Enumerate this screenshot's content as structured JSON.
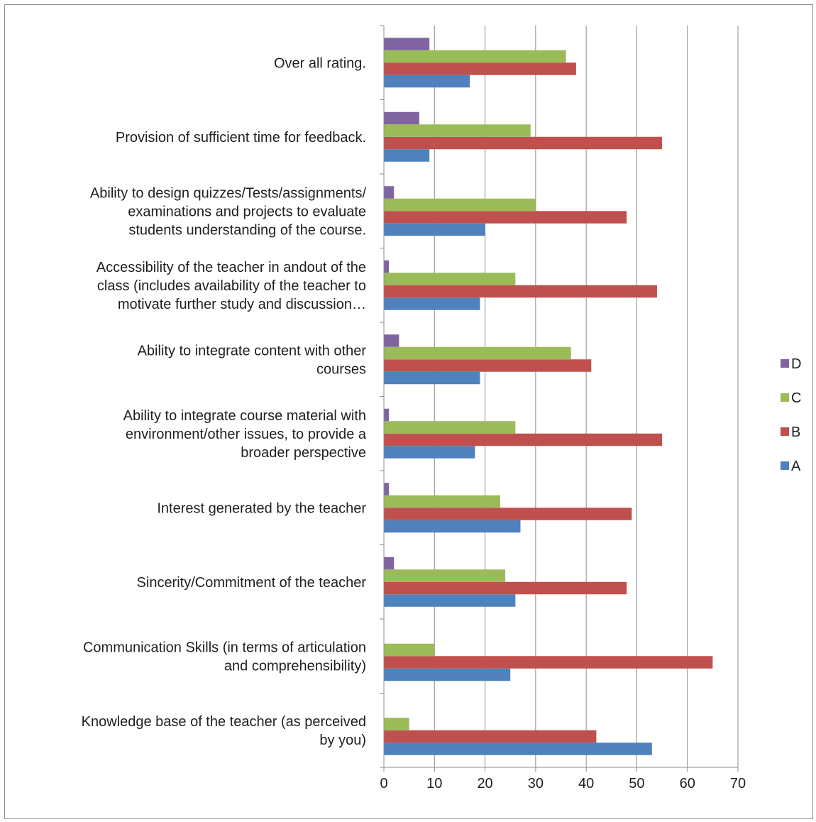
{
  "chart_data": {
    "type": "bar",
    "orientation": "horizontal",
    "categories": [
      [
        "Knowledge base of the teacher (as perceived",
        "by you)"
      ],
      [
        "Communication Skills (in terms of articulation",
        "and comprehensibility)"
      ],
      [
        "Sincerity/Commitment of the teacher"
      ],
      [
        "Interest generated by the teacher"
      ],
      [
        "Ability to integrate course material with",
        "environment/other issues, to provide a",
        "broader perspective"
      ],
      [
        "Ability to integrate  content  with  other",
        "courses"
      ],
      [
        "Accessibility of the teacher in andout  of  the",
        "class  (includes availability of  the  teacher to",
        "motivate further study and discussion…"
      ],
      [
        "Ability to design quizzes/Tests/assignments/",
        "examinations and projects to evaluate",
        "students understanding of the course."
      ],
      [
        "Provision of sufficient time for feedback."
      ],
      [
        "Over all rating."
      ]
    ],
    "series": [
      {
        "name": "A",
        "color": "#4f81bd",
        "values": [
          53,
          25,
          26,
          27,
          18,
          19,
          19,
          20,
          9,
          17
        ]
      },
      {
        "name": "B",
        "color": "#c0504d",
        "values": [
          42,
          65,
          48,
          49,
          55,
          41,
          54,
          48,
          55,
          38
        ]
      },
      {
        "name": "C",
        "color": "#9bbb59",
        "values": [
          5,
          10,
          24,
          23,
          26,
          37,
          26,
          30,
          29,
          36
        ]
      },
      {
        "name": "D",
        "color": "#8064a2",
        "values": [
          0,
          0,
          2,
          1,
          1,
          3,
          1,
          2,
          7,
          9
        ]
      }
    ],
    "xlim": [
      0,
      70
    ],
    "xticks": [
      0,
      10,
      20,
      30,
      40,
      50,
      60,
      70
    ],
    "grid": "vertical",
    "legend_position": "right",
    "legend_order": [
      "D",
      "C",
      "B",
      "A"
    ]
  }
}
